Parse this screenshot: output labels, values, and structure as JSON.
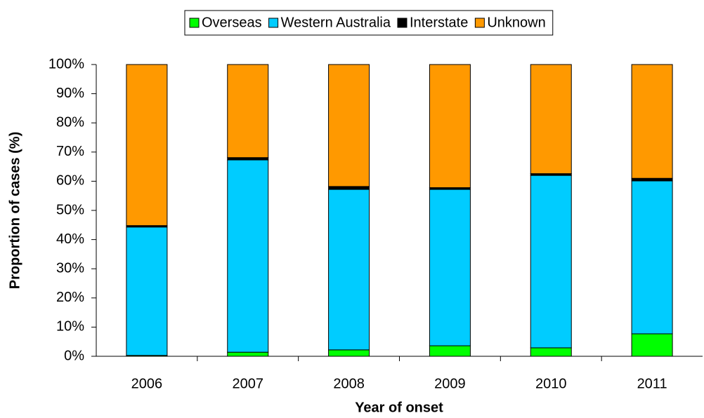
{
  "chart_data": {
    "type": "stacked_bar",
    "x_label": "Year of onset",
    "y_label": "Proportion of cases  (%)",
    "categories": [
      "2006",
      "2007",
      "2008",
      "2009",
      "2010",
      "2011"
    ],
    "series": [
      {
        "name": "Overseas",
        "color": "#00ff00",
        "values": [
          0.3,
          1.4,
          2.2,
          3.6,
          2.9,
          7.7
        ]
      },
      {
        "name": "Western Australia",
        "color": "#00ccff",
        "values": [
          44.0,
          65.9,
          55.0,
          53.6,
          59.1,
          52.4
        ]
      },
      {
        "name": "Interstate",
        "color": "#000000",
        "values": [
          0.5,
          0.8,
          1.0,
          0.6,
          0.6,
          0.9
        ]
      },
      {
        "name": "Unknown",
        "color": "#ff9900",
        "values": [
          55.2,
          31.9,
          41.8,
          42.2,
          37.4,
          39.0
        ]
      }
    ],
    "ylim": [
      0,
      100
    ],
    "yticks": [
      {
        "value": 0,
        "label": "0%"
      },
      {
        "value": 10,
        "label": "10%"
      },
      {
        "value": 20,
        "label": "20%"
      },
      {
        "value": 30,
        "label": "30%"
      },
      {
        "value": 40,
        "label": "40%"
      },
      {
        "value": 50,
        "label": "50%"
      },
      {
        "value": 60,
        "label": "60%"
      },
      {
        "value": 70,
        "label": "70%"
      },
      {
        "value": 80,
        "label": "80%"
      },
      {
        "value": 90,
        "label": "90%"
      },
      {
        "value": 100,
        "label": "100%"
      }
    ],
    "legend_position": "top"
  }
}
